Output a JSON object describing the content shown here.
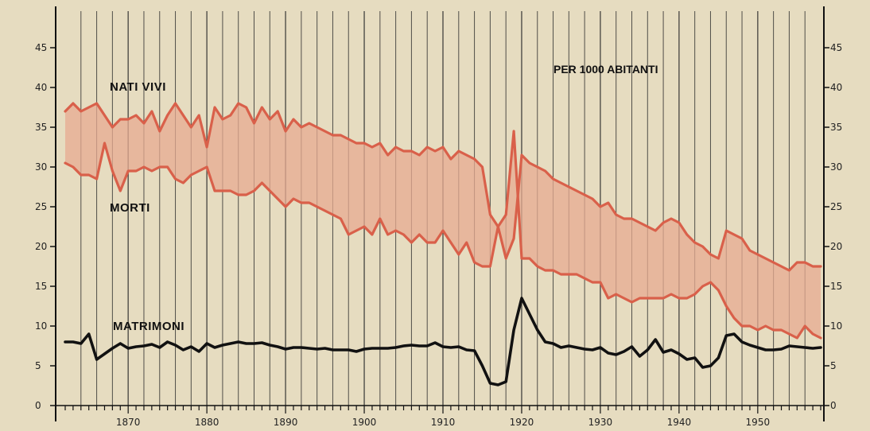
{
  "chart_data": {
    "type": "line",
    "note": "PER 1000 ABITANTI",
    "xlim": [
      1862,
      1958
    ],
    "ylim": [
      0,
      45
    ],
    "y_ticks": [
      0,
      5,
      10,
      15,
      20,
      25,
      30,
      35,
      40,
      45
    ],
    "x_ticks": [
      1870,
      1880,
      1890,
      1900,
      1910,
      1920,
      1930,
      1940,
      1950
    ],
    "grid": true,
    "band_between": [
      "NATI VIVI",
      "MORTI"
    ],
    "colors": {
      "background": "#e6dcc0",
      "nati": "#d9604a",
      "morti": "#d9604a",
      "band": "#e7ab92",
      "matrimoni": "#111111",
      "grid": "#2a2a2a"
    },
    "series": [
      {
        "name": "NATI VIVI",
        "x": [
          1862,
          1863,
          1864,
          1865,
          1866,
          1867,
          1868,
          1869,
          1870,
          1871,
          1872,
          1873,
          1874,
          1875,
          1876,
          1877,
          1878,
          1879,
          1880,
          1881,
          1882,
          1883,
          1884,
          1885,
          1886,
          1887,
          1888,
          1889,
          1890,
          1891,
          1892,
          1893,
          1894,
          1895,
          1896,
          1897,
          1898,
          1899,
          1900,
          1901,
          1902,
          1903,
          1904,
          1905,
          1906,
          1907,
          1908,
          1909,
          1910,
          1911,
          1912,
          1913,
          1914,
          1915,
          1916,
          1917,
          1918,
          1919,
          1920,
          1921,
          1922,
          1923,
          1924,
          1925,
          1926,
          1927,
          1928,
          1929,
          1930,
          1931,
          1932,
          1933,
          1934,
          1935,
          1936,
          1937,
          1938,
          1939,
          1940,
          1941,
          1942,
          1943,
          1944,
          1945,
          1946,
          1947,
          1948,
          1949,
          1950,
          1951,
          1952,
          1953,
          1954,
          1955,
          1956,
          1957,
          1958
        ],
        "values": [
          37.0,
          38.0,
          37.0,
          37.5,
          38.0,
          36.5,
          35.0,
          36.0,
          36.0,
          36.5,
          35.5,
          37.0,
          34.5,
          36.5,
          38.0,
          36.5,
          35.0,
          36.5,
          32.5,
          37.5,
          36.0,
          36.5,
          38.0,
          37.5,
          35.5,
          37.5,
          36.0,
          37.0,
          34.5,
          36.0,
          35.0,
          35.5,
          35.0,
          34.5,
          34.0,
          34.0,
          33.5,
          33.0,
          33.0,
          32.5,
          33.0,
          31.5,
          32.5,
          32.0,
          32.0,
          31.5,
          32.5,
          32.0,
          32.5,
          31.0,
          32.0,
          31.5,
          31.0,
          30.0,
          24.0,
          22.5,
          18.5,
          21.0,
          31.5,
          30.5,
          30.0,
          29.5,
          28.5,
          28.0,
          27.5,
          27.0,
          26.5,
          26.0,
          25.0,
          25.5,
          24.0,
          23.5,
          23.5,
          23.0,
          22.5,
          22.0,
          23.0,
          23.5,
          23.0,
          21.5,
          20.5,
          20.0,
          19.0,
          18.5,
          22.0,
          21.5,
          21.0,
          19.5,
          19.0,
          18.5,
          18.0,
          17.5,
          17.0,
          18.0,
          18.0,
          17.5,
          17.5
        ]
      },
      {
        "name": "MORTI",
        "x": [
          1862,
          1863,
          1864,
          1865,
          1866,
          1867,
          1868,
          1869,
          1870,
          1871,
          1872,
          1873,
          1874,
          1875,
          1876,
          1877,
          1878,
          1879,
          1880,
          1881,
          1882,
          1883,
          1884,
          1885,
          1886,
          1887,
          1888,
          1889,
          1890,
          1891,
          1892,
          1893,
          1894,
          1895,
          1896,
          1897,
          1898,
          1899,
          1900,
          1901,
          1902,
          1903,
          1904,
          1905,
          1906,
          1907,
          1908,
          1909,
          1910,
          1911,
          1912,
          1913,
          1914,
          1915,
          1916,
          1917,
          1918,
          1919,
          1920,
          1921,
          1922,
          1923,
          1924,
          1925,
          1926,
          1927,
          1928,
          1929,
          1930,
          1931,
          1932,
          1933,
          1934,
          1935,
          1936,
          1937,
          1938,
          1939,
          1940,
          1941,
          1942,
          1943,
          1944,
          1945,
          1946,
          1947,
          1948,
          1949,
          1950,
          1951,
          1952,
          1953,
          1954,
          1955,
          1956,
          1957,
          1958
        ],
        "values": [
          30.5,
          30.0,
          29.0,
          29.0,
          28.5,
          33.0,
          29.5,
          27.0,
          29.5,
          29.5,
          30.0,
          29.5,
          30.0,
          30.0,
          28.5,
          28.0,
          29.0,
          29.5,
          30.0,
          27.0,
          27.0,
          27.0,
          26.5,
          26.5,
          27.0,
          28.0,
          27.0,
          26.0,
          25.0,
          26.0,
          25.5,
          25.5,
          25.0,
          24.5,
          24.0,
          23.5,
          21.5,
          22.0,
          22.5,
          21.5,
          23.5,
          21.5,
          22.0,
          21.5,
          20.5,
          21.5,
          20.5,
          20.5,
          22.0,
          20.5,
          19.0,
          20.5,
          18.0,
          17.5,
          17.5,
          22.5,
          24.0,
          34.5,
          18.5,
          18.5,
          17.5,
          17.0,
          17.0,
          16.5,
          16.5,
          16.5,
          16.0,
          15.5,
          15.5,
          13.5,
          14.0,
          13.5,
          13.0,
          13.5,
          13.5,
          13.5,
          13.5,
          14.0,
          13.5,
          13.5,
          14.0,
          15.0,
          15.5,
          14.5,
          12.5,
          11.0,
          10.0,
          10.0,
          9.5,
          10.0,
          9.5,
          9.5,
          9.0,
          8.5,
          10.0,
          9.0,
          8.5
        ]
      },
      {
        "name": "MATRIMONI",
        "x": [
          1862,
          1863,
          1864,
          1865,
          1866,
          1867,
          1868,
          1869,
          1870,
          1871,
          1872,
          1873,
          1874,
          1875,
          1876,
          1877,
          1878,
          1879,
          1880,
          1881,
          1882,
          1883,
          1884,
          1885,
          1886,
          1887,
          1888,
          1889,
          1890,
          1891,
          1892,
          1893,
          1894,
          1895,
          1896,
          1897,
          1898,
          1899,
          1900,
          1901,
          1902,
          1903,
          1904,
          1905,
          1906,
          1907,
          1908,
          1909,
          1910,
          1911,
          1912,
          1913,
          1914,
          1915,
          1916,
          1917,
          1918,
          1919,
          1920,
          1921,
          1922,
          1923,
          1924,
          1925,
          1926,
          1927,
          1928,
          1929,
          1930,
          1931,
          1932,
          1933,
          1934,
          1935,
          1936,
          1937,
          1938,
          1939,
          1940,
          1941,
          1942,
          1943,
          1944,
          1945,
          1946,
          1947,
          1948,
          1949,
          1950,
          1951,
          1952,
          1953,
          1954,
          1955,
          1956,
          1957,
          1958
        ],
        "values": [
          8.0,
          8.0,
          7.8,
          9.0,
          5.8,
          6.5,
          7.2,
          7.8,
          7.2,
          7.4,
          7.5,
          7.7,
          7.3,
          8.0,
          7.6,
          7.0,
          7.4,
          6.8,
          7.8,
          7.3,
          7.6,
          7.8,
          8.0,
          7.8,
          7.8,
          7.9,
          7.6,
          7.4,
          7.1,
          7.3,
          7.3,
          7.2,
          7.1,
          7.2,
          7.0,
          7.0,
          7.0,
          6.8,
          7.1,
          7.2,
          7.2,
          7.2,
          7.3,
          7.5,
          7.6,
          7.5,
          7.5,
          7.9,
          7.4,
          7.3,
          7.4,
          7.0,
          6.9,
          5.0,
          2.8,
          2.6,
          3.0,
          9.5,
          13.5,
          11.5,
          9.5,
          8.0,
          7.8,
          7.3,
          7.5,
          7.3,
          7.1,
          7.0,
          7.3,
          6.6,
          6.4,
          6.8,
          7.4,
          6.2,
          7.0,
          8.3,
          6.7,
          7.0,
          6.5,
          5.8,
          6.0,
          4.8,
          5.0,
          6.0,
          8.8,
          9.0,
          8.0,
          7.6,
          7.3,
          7.0,
          7.0,
          7.1,
          7.5,
          7.4,
          7.3,
          7.2,
          7.3
        ]
      }
    ]
  }
}
